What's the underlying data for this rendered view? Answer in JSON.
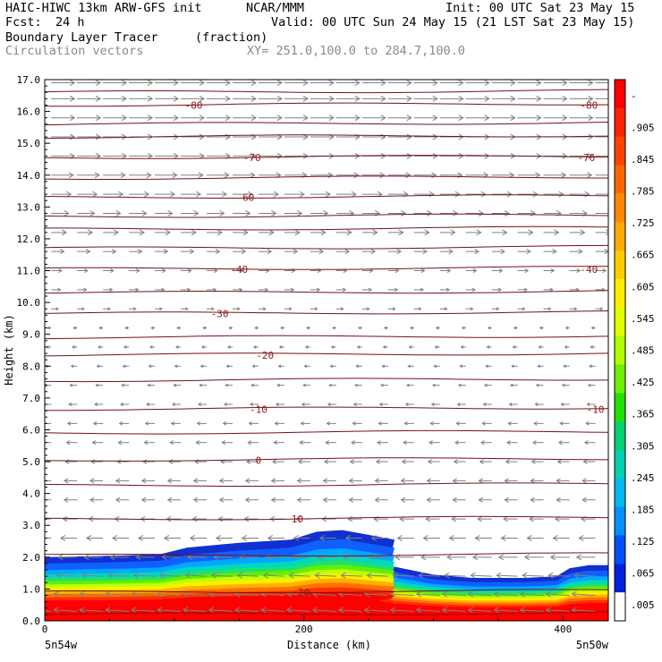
{
  "header": {
    "model": "HAIC-HIWC 13km ARW-GFS init",
    "org": "NCAR/MMM",
    "init": "Init: 00 UTC Sat 23 May 15",
    "fcst_label": "Fcst:",
    "fcst_value": "24 h",
    "valid": "Valid: 00 UTC Sun 24 May 15 (21 LST Sat 23 May 15)",
    "field": "Boundary Layer Tracer",
    "field_units": "(fraction)",
    "vectors": "Circulation vectors",
    "xy_range": "XY= 251.0,100.0 to 284.7,100.0"
  },
  "chart_data": {
    "type": "heatmap",
    "ylabel": "Height (km)",
    "xlabel": "Distance (km)",
    "xlim": [
      0,
      435
    ],
    "ylim": [
      0,
      17
    ],
    "y_ticks": [
      "0.0",
      "1.0",
      "2.0",
      "3.0",
      "4.0",
      "5.0",
      "6.0",
      "7.0",
      "8.0",
      "9.0",
      "10.0",
      "11.0",
      "12.0",
      "13.0",
      "14.0",
      "15.0",
      "16.0",
      "17.0"
    ],
    "x_ticks": [
      {
        "value": 0,
        "label": "0"
      },
      {
        "value": 200,
        "label": "200"
      },
      {
        "value": 400,
        "label": "400"
      }
    ],
    "x_end_labels": {
      "left": "5n54w",
      "right": "5n50w"
    },
    "colorbar": {
      "labels": [
        "-",
        ".905",
        ".845",
        ".785",
        ".725",
        ".665",
        ".605",
        ".545",
        ".485",
        ".425",
        ".365",
        ".305",
        ".245",
        ".185",
        ".125",
        ".065",
        ".005"
      ],
      "colors": [
        "#ff0000",
        "#ff2200",
        "#ff4400",
        "#ff6600",
        "#ff8800",
        "#ffaa00",
        "#ffcc00",
        "#ffee00",
        "#e0ff00",
        "#b0ff00",
        "#70f000",
        "#20e000",
        "#00d070",
        "#00d0b0",
        "#00b8f0",
        "#0090ff",
        "#0050ff",
        "#0020e0",
        "#ffffff"
      ]
    },
    "tracer_top_km": [
      [
        0,
        2.0
      ],
      [
        60,
        2.05
      ],
      [
        90,
        2.1
      ],
      [
        110,
        2.3
      ],
      [
        150,
        2.45
      ],
      [
        190,
        2.55
      ],
      [
        210,
        2.8
      ],
      [
        230,
        2.85
      ],
      [
        250,
        2.7
      ],
      [
        270,
        2.55
      ],
      [
        268,
        2.2
      ],
      [
        258,
        1.95
      ],
      [
        270,
        1.7
      ],
      [
        300,
        1.45
      ],
      [
        330,
        1.35
      ],
      [
        370,
        1.35
      ],
      [
        395,
        1.4
      ],
      [
        405,
        1.65
      ],
      [
        420,
        1.75
      ],
      [
        435,
        1.75
      ]
    ],
    "contour_label_color": "#8b1a1a",
    "contours": [
      {
        "label": "20",
        "y_km": 0.9,
        "label_x": 200
      },
      {
        "label": "10",
        "y_km": 3.2,
        "label_x": 195
      },
      {
        "label": "0",
        "y_km": 5.05,
        "label_x": 165
      },
      {
        "label": "-10",
        "y_km": 6.65,
        "label_x": 165
      },
      {
        "label": "-10",
        "y_km": 6.65,
        "label_x": 425
      },
      {
        "label": "-20",
        "y_km": 8.35,
        "label_x": 170
      },
      {
        "label": "-30",
        "y_km": 9.65,
        "label_x": 135
      },
      {
        "label": "-40",
        "y_km": 11.05,
        "label_x": 150
      },
      {
        "label": "-40",
        "y_km": 11.05,
        "label_x": 420
      },
      {
        "label": "-60",
        "y_km": 13.3,
        "label_x": 155
      },
      {
        "label": "-70",
        "y_km": 14.55,
        "label_x": 160
      },
      {
        "label": "-70",
        "y_km": 14.55,
        "label_x": 418
      },
      {
        "label": "-80",
        "y_km": 16.2,
        "label_x": 115
      },
      {
        "label": "-80",
        "y_km": 16.2,
        "label_x": 420
      }
    ],
    "unlabeled_isotherm_km": [
      0.2,
      2.05,
      4.25,
      5.9,
      7.55,
      8.9,
      10.3,
      11.7,
      12.3,
      12.7,
      13.9,
      15.2,
      15.6,
      16.6
    ],
    "vector_field": [
      {
        "y_km": 0.3,
        "u": -1.0,
        "v": 0.15
      },
      {
        "y_km": 0.8,
        "u": -1.0,
        "v": 0.15
      },
      {
        "y_km": 1.4,
        "u": -0.9,
        "v": 0.1
      },
      {
        "y_km": 2.0,
        "u": -0.8,
        "v": 0.0
      },
      {
        "y_km": 2.6,
        "u": -0.7,
        "v": 0.0
      },
      {
        "y_km": 3.2,
        "u": -0.6,
        "v": 0.0
      },
      {
        "y_km": 3.8,
        "u": -0.55,
        "v": 0.0
      },
      {
        "y_km": 4.4,
        "u": -0.55,
        "v": 0.0
      },
      {
        "y_km": 5.0,
        "u": -0.5,
        "v": 0.0
      },
      {
        "y_km": 5.6,
        "u": -0.45,
        "v": 0.0
      },
      {
        "y_km": 6.2,
        "u": -0.4,
        "v": 0.0
      },
      {
        "y_km": 6.8,
        "u": -0.35,
        "v": 0.0
      },
      {
        "y_km": 7.4,
        "u": -0.3,
        "v": 0.0
      },
      {
        "y_km": 8.0,
        "u": -0.25,
        "v": 0.0
      },
      {
        "y_km": 8.6,
        "u": -0.2,
        "v": 0.0
      },
      {
        "y_km": 9.2,
        "u": -0.15,
        "v": 0.0
      },
      {
        "y_km": 9.8,
        "u": 0.3,
        "v": 0.0
      },
      {
        "y_km": 10.4,
        "u": 0.4,
        "v": 0.0
      },
      {
        "y_km": 11.0,
        "u": 0.45,
        "v": 0.0
      },
      {
        "y_km": 11.6,
        "u": 0.55,
        "v": 0.0
      },
      {
        "y_km": 12.2,
        "u": 0.65,
        "v": 0.0
      },
      {
        "y_km": 12.8,
        "u": 0.75,
        "v": 0.0
      },
      {
        "y_km": 13.4,
        "u": 0.85,
        "v": 0.0
      },
      {
        "y_km": 14.0,
        "u": 0.95,
        "v": 0.0
      },
      {
        "y_km": 14.6,
        "u": 1.0,
        "v": 0.0
      },
      {
        "y_km": 15.2,
        "u": 1.0,
        "v": 0.0
      },
      {
        "y_km": 15.8,
        "u": 1.0,
        "v": 0.0
      },
      {
        "y_km": 16.4,
        "u": 1.0,
        "v": 0.0
      },
      {
        "y_km": 16.9,
        "u": 1.0,
        "v": 0.0
      }
    ],
    "vector_color": "#808080"
  }
}
